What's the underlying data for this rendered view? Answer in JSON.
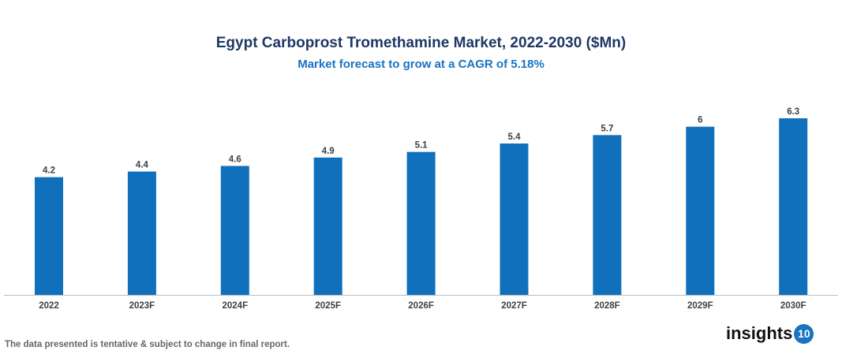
{
  "chart_data": {
    "type": "bar",
    "title": "Egypt Carboprost Tromethamine Market, 2022-2030 ($Mn)",
    "subtitle": "Market forecast to grow at a CAGR of 5.18%",
    "categories": [
      "2022",
      "2023F",
      "2024F",
      "2025F",
      "2026F",
      "2027F",
      "2028F",
      "2029F",
      "2030F"
    ],
    "values": [
      4.2,
      4.4,
      4.6,
      4.9,
      5.1,
      5.4,
      5.7,
      6,
      6.3
    ],
    "data_labels": [
      "4.2",
      "4.4",
      "4.6",
      "4.9",
      "5.1",
      "5.4",
      "5.7",
      "6",
      "6.3"
    ],
    "xlabel": "",
    "ylabel": "",
    "ylim": [
      0,
      6.3
    ],
    "grid": false,
    "bar_color": "#1170bb"
  },
  "footer": {
    "note": "The data presented is tentative & subject to change in final report.",
    "logo_text": "insights",
    "logo_badge": "10"
  }
}
